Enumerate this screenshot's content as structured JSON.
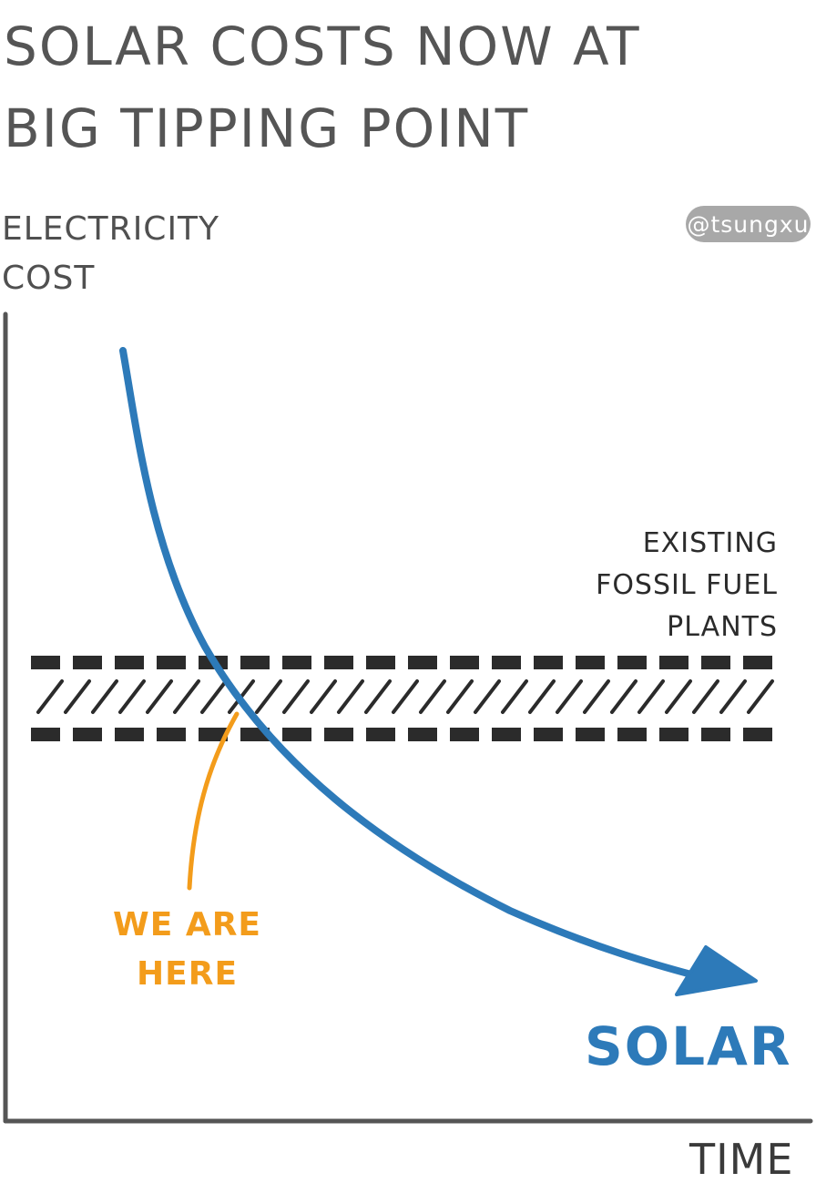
{
  "title": {
    "line1": "SOLAR COSTS NOW AT",
    "line2": "BIG TIPPING POINT"
  },
  "watermark": "@tsungxu",
  "axes": {
    "y_label_line1": "ELECTRICITY",
    "y_label_line2": "COST",
    "x_label": "TIME"
  },
  "band_label": {
    "line1": "EXISTING",
    "line2": "FOSSIL FUEL",
    "line3": "PLANTS"
  },
  "marker_label": {
    "line1": "WE ARE",
    "line2": "HERE"
  },
  "curve_label": "SOLAR",
  "colors": {
    "axis": "#555555",
    "solar": "#2d7ab9",
    "marker": "#f39c1b",
    "band": "#2b2b2b",
    "watermark_bg": "#a8a8a8"
  }
}
